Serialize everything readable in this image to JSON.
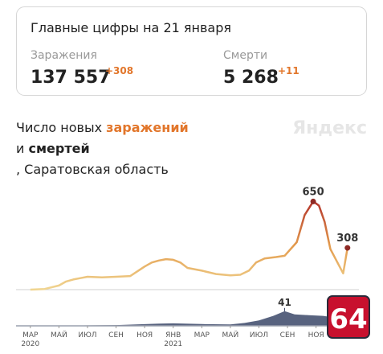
{
  "header": {
    "title": "Главные цифры на 21 января",
    "stats": [
      {
        "label": "Заражения",
        "value": "137 557",
        "delta": "+308"
      },
      {
        "label": "Смерти",
        "value": "5 268",
        "delta": "+11"
      }
    ]
  },
  "subtitle": {
    "part1": "Число новых ",
    "accent": "заражений",
    "part2": "и ",
    "bold": "смертей",
    "part3": ", Саратовская область"
  },
  "watermark": "Яндекс",
  "badge": "64",
  "chart_data": {
    "type": "line",
    "xlim": [
      -1,
      23
    ],
    "xticks": [
      {
        "value": 0,
        "label": "МАР"
      },
      {
        "value": 2,
        "label": "МАЙ"
      },
      {
        "value": 4,
        "label": "ИЮЛ"
      },
      {
        "value": 6,
        "label": "СЕН"
      },
      {
        "value": 8,
        "label": "НОЯ"
      },
      {
        "value": 10,
        "label": "ЯНВ"
      },
      {
        "value": 12,
        "label": "МАР"
      },
      {
        "value": 14,
        "label": "МАЙ"
      },
      {
        "value": 16,
        "label": "ИЮЛ"
      },
      {
        "value": 18,
        "label": "СЕН"
      },
      {
        "value": 20,
        "label": "НОЯ"
      }
    ],
    "xtick_years": [
      {
        "value": 0,
        "label": "2020"
      },
      {
        "value": 10,
        "label": "2021"
      }
    ],
    "ylim": [
      0,
      700
    ],
    "y2lim": [
      0,
      45
    ],
    "series": [
      {
        "name": "заражений",
        "gradient": [
          "#f0d591",
          "#e39a4c",
          "#b3332b"
        ],
        "x": [
          0,
          1,
          2,
          2.5,
          3,
          3.5,
          4,
          5,
          6,
          7,
          8,
          8.5,
          9,
          9.5,
          10,
          10.5,
          11,
          12,
          13,
          14,
          14.7,
          15.3,
          15.8,
          16.4,
          17.2,
          17.8,
          18.65,
          19.2,
          19.8,
          20.2,
          20.6,
          21,
          21.5,
          21.9,
          22.2
        ],
        "values": [
          0,
          5,
          30,
          60,
          75,
          85,
          95,
          90,
          95,
          100,
          170,
          200,
          215,
          225,
          220,
          200,
          160,
          140,
          115,
          105,
          110,
          140,
          200,
          230,
          240,
          250,
          350,
          550,
          650,
          620,
          500,
          300,
          200,
          120,
          308
        ]
      },
      {
        "name": "смертей",
        "color": "#3b4868",
        "axis": "y2",
        "x": [
          0,
          3,
          6,
          9,
          10,
          12,
          14,
          15,
          16,
          17,
          17.8,
          18.5,
          19.5,
          20.5,
          21.5,
          22.2
        ],
        "values": [
          0,
          1,
          2,
          6,
          7,
          5,
          4,
          8,
          15,
          28,
          41,
          32,
          30,
          28,
          22,
          11
        ]
      }
    ]
  }
}
